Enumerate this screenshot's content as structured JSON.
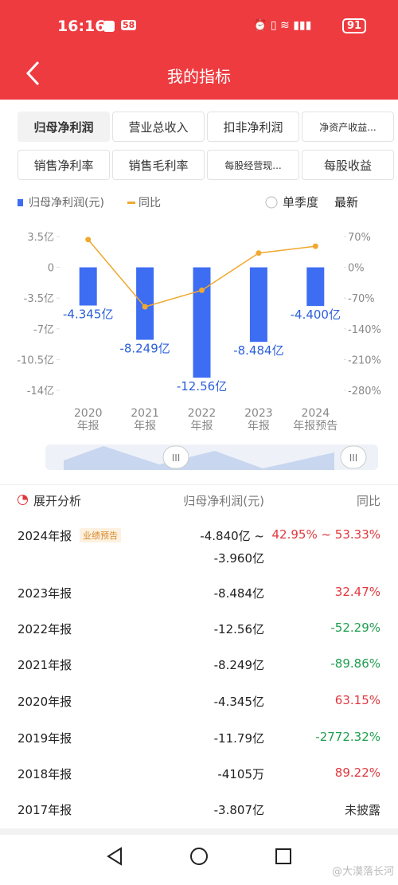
{
  "status": {
    "time": "16:16",
    "badge": "58",
    "battery": "91"
  },
  "header": {
    "title": "我的指标"
  },
  "tabs": [
    "归母净利润",
    "营业总收入",
    "扣非净利润",
    "净资产收益...",
    "销售净利率",
    "销售毛利率",
    "每股经营现...",
    "每股收益"
  ],
  "options": {
    "quarter": "单季度",
    "latest": "最新"
  },
  "chart_data": {
    "type": "bar",
    "categories": [
      "2020年报",
      "2021年报",
      "2022年报",
      "2023年报",
      "2024年报预告"
    ],
    "series": [
      {
        "name": "归母净利润(元)",
        "color": "#3d6df2",
        "values": [
          -4.345,
          -8.249,
          -12.56,
          -8.484,
          -4.4
        ],
        "value_labels": [
          "-4.345亿",
          "-8.249亿",
          "-12.56亿",
          "-8.484亿",
          "-4.400亿"
        ]
      },
      {
        "name": "同比",
        "color": "#f0a830",
        "type": "line",
        "axis": "y2",
        "values": [
          63.15,
          -89.86,
          -52.29,
          32.47,
          48
        ]
      }
    ],
    "ylim": [
      -14,
      3.5
    ],
    "yticks": [
      {
        "value": 3.5,
        "label": "3.5亿"
      },
      0,
      {
        "value": -3.5,
        "label": "-3.5亿"
      },
      {
        "value": -7,
        "label": "-7亿"
      },
      {
        "value": -10.5,
        "label": "-10.5亿"
      },
      {
        "value": -14,
        "label": "-14亿"
      }
    ],
    "y2lim": [
      -280,
      70
    ],
    "y2ticks": [
      {
        "value": 70,
        "label": "70%"
      },
      {
        "value": 0,
        "label": "0%"
      },
      {
        "value": -70,
        "label": "-70%"
      },
      {
        "value": -140,
        "label": "-140%"
      },
      {
        "value": -210,
        "label": "-210%"
      },
      {
        "value": -280,
        "label": "-280%"
      }
    ],
    "grid": false
  },
  "table": {
    "header": [
      "展开分析",
      "归母净利润(元)",
      "同比"
    ],
    "rows": [
      {
        "period": "2024年报",
        "tag": "业绩预告",
        "value": [
          "-4.840亿 ~",
          "-3.960亿"
        ],
        "yoy": "42.95% ~ 53.33%",
        "trend": "up"
      },
      {
        "period": "2023年报",
        "value": [
          "-8.484亿"
        ],
        "yoy": "32.47%",
        "trend": "up"
      },
      {
        "period": "2022年报",
        "value": [
          "-12.56亿"
        ],
        "yoy": "-52.29%",
        "trend": "down"
      },
      {
        "period": "2021年报",
        "value": [
          "-8.249亿"
        ],
        "yoy": "-89.86%",
        "trend": "down"
      },
      {
        "period": "2020年报",
        "value": [
          "-4.345亿"
        ],
        "yoy": "63.15%",
        "trend": "up"
      },
      {
        "period": "2019年报",
        "value": [
          "-11.79亿"
        ],
        "yoy": "-2772.32%",
        "trend": "down"
      },
      {
        "period": "2018年报",
        "value": [
          "-4105万"
        ],
        "yoy": "89.22%",
        "trend": "up"
      },
      {
        "period": "2017年报",
        "value": [
          "-3.807亿"
        ],
        "yoy": "未披露",
        "trend": "none"
      }
    ]
  },
  "watermark": "@大漠落长河"
}
